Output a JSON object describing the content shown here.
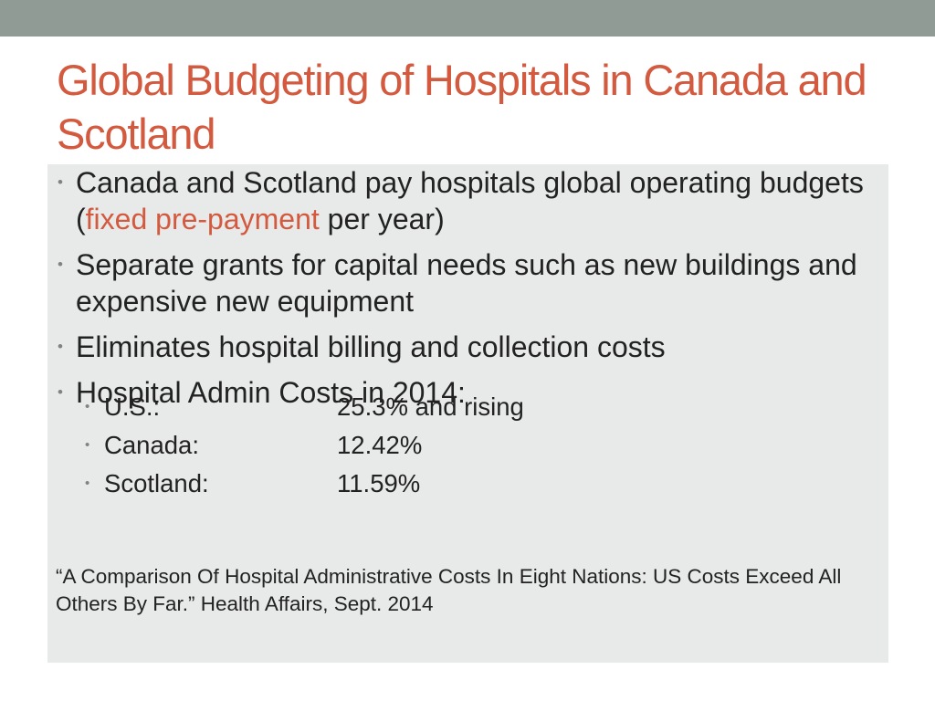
{
  "slide": {
    "title": "Global Budgeting of Hospitals in Canada and Scotland",
    "bullets": [
      {
        "before": "Canada and Scotland pay hospitals global operating budgets (",
        "highlight": "fixed pre-payment",
        "after": " per year)"
      },
      {
        "text": "Separate grants for capital needs such as new buildings and expensive new equipment"
      },
      {
        "text": "Eliminates hospital billing and collection costs"
      },
      {
        "text": "Hospital Admin Costs in 2014:"
      }
    ],
    "admin_costs": [
      {
        "country": "U.S.:",
        "value": "25.3% and rising"
      },
      {
        "country": "Canada:",
        "value": "12.42%"
      },
      {
        "country": "Scotland:",
        "value": "11.59%"
      }
    ],
    "citation": "“A Comparison Of Hospital Administrative Costs In Eight Nations: US Costs Exceed All Others By Far.” Health Affairs, Sept. 2014"
  },
  "colors": {
    "title": "#d35a3e",
    "accent": "#d35a3e",
    "top_bar": "#909b95",
    "panel": "#e8e9e9",
    "bullet_dot": "#7e8581"
  }
}
